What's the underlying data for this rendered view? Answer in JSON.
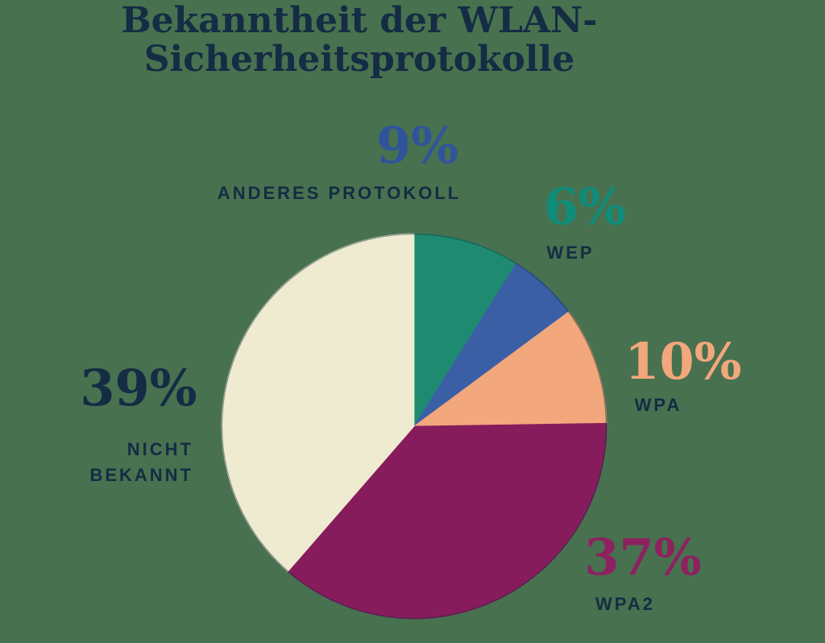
{
  "background_color": "#48714F",
  "title": {
    "line1": "Bekanntheit der WLAN-",
    "line2": "Sicherheitsprotokolle",
    "color": "#142C44"
  },
  "chart_data": {
    "type": "pie",
    "title": "Bekanntheit der WLAN-Sicherheitsprotokolle",
    "unit": "percent",
    "direction": "clockwise",
    "start_angle_deg": 0,
    "legend_position": "callouts-around-pie",
    "label_color": "#142C44",
    "pie_outline_color": "rgba(19,41,63,0.5)",
    "slices": [
      {
        "label": "ANDERES PROTOKOLL",
        "pct_text": "9%",
        "value": 9,
        "slice_color": "#1E8B71",
        "pct_color": "#30549C"
      },
      {
        "label": "WEP",
        "pct_text": "6%",
        "value": 6,
        "slice_color": "#3B5FA5",
        "pct_color": "#0F8C7A"
      },
      {
        "label": "WPA",
        "pct_text": "10%",
        "value": 10,
        "slice_color": "#F3A77C",
        "pct_color": "#F3A77C"
      },
      {
        "label": "WPA2",
        "pct_text": "37%",
        "value": 37,
        "slice_color": "#871C5D",
        "pct_color": "#8E2160"
      },
      {
        "label": "NICHT BEKANNT",
        "pct_text": "39%",
        "value": 39,
        "slice_color": "#EFEBD1",
        "pct_color": "#142C44"
      }
    ]
  }
}
